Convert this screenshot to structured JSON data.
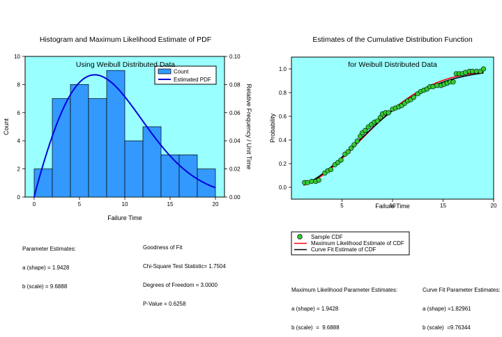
{
  "left_panel": {
    "title_line1": "Histogram and Maximum Likelihood Estimate of PDF",
    "title_line2": "Using Weibull Distributed Data",
    "parameters": {
      "heading": "Parameter Estimates:",
      "shape": "a (shape) = 1.9428",
      "scale": "b (scale) = 9.6888"
    },
    "goodness_of_fit": {
      "heading": "Goodness of Fit",
      "chi_square": "Chi-Square Test Statistic= 1.7504",
      "dof": "Degrees of Freedom = 3.0000",
      "p_value": "P-Value = 0.6258"
    }
  },
  "right_panel": {
    "title_line1": "Estimates of the Cumulative Distribution Function",
    "title_line2": "for Weibull Distributed Data",
    "mle_params": {
      "heading": "Maximum Likelihood Parameter Estimates:",
      "shape": "a (shape) = 1.9428",
      "scale": "b (scale)  =  9.6888"
    },
    "fit_params": {
      "heading": "Curve Fit Parameter Estimates:",
      "shape": "a (shape) =1.82961",
      "scale": "b (scale)  =9.76344"
    }
  },
  "colors": {
    "plot_bg": "#99FFFF",
    "bar_fill": "#3399FF",
    "pdf_line": "#0000DD",
    "mle_line": "#FF0000",
    "fit_line": "#000000",
    "marker": "#33CC33"
  },
  "chart_data": [
    {
      "type": "bar",
      "title": "Histogram and Maximum Likelihood Estimate of PDF\nUsing Weibull Distributed Data",
      "xlabel": "Failure Time",
      "ylabel": "Count",
      "y2label": "Relative Frequency / Unit Time",
      "xlim": [
        -1,
        21
      ],
      "ylim": [
        0,
        10
      ],
      "y2lim": [
        0,
        0.1
      ],
      "x_ticks": [
        "0",
        "5",
        "10",
        "15",
        "20"
      ],
      "y_ticks": [
        "0",
        "2",
        "4",
        "6",
        "8",
        "10"
      ],
      "y2_ticks": [
        "0.00",
        "0.02",
        "0.04",
        "0.06",
        "0.08",
        "0.10"
      ],
      "bin_edges": [
        0,
        2,
        4,
        6,
        8,
        10,
        12,
        14,
        16,
        18,
        20
      ],
      "counts": [
        2,
        7,
        8,
        7,
        9,
        4,
        5,
        3,
        3,
        2
      ],
      "legend": [
        "Count",
        "Estimated PDF"
      ],
      "legend_position": "top-right",
      "pdf_curve": {
        "name": "Estimated PDF",
        "shape": 1.9428,
        "scale": 9.6888,
        "x_range": [
          0,
          20
        ]
      }
    },
    {
      "type": "scatter",
      "title": "Estimates of the Cumulative Distribution Function\nfor Weibull Distributed Data",
      "xlabel": "Failure Time",
      "ylabel": "Probability",
      "xlim": [
        0,
        20
      ],
      "ylim": [
        -0.1,
        1.1
      ],
      "x_ticks": [
        "5",
        "10",
        "15",
        "20"
      ],
      "y_ticks": [
        "0.0",
        "0.2",
        "0.4",
        "0.6",
        "0.8",
        "1.0"
      ],
      "legend": [
        "Sample CDF",
        "Maximum Likelihood Estimate of CDF",
        "Curve Fit Estimate of CDF"
      ],
      "legend_position": "below",
      "sample_cdf": [
        [
          1.3,
          0.04
        ],
        [
          1.6,
          0.04
        ],
        [
          2.0,
          0.05
        ],
        [
          2.4,
          0.05
        ],
        [
          2.7,
          0.06
        ],
        [
          3.3,
          0.12
        ],
        [
          3.6,
          0.14
        ],
        [
          3.9,
          0.15
        ],
        [
          4.3,
          0.19
        ],
        [
          4.6,
          0.21
        ],
        [
          4.9,
          0.23
        ],
        [
          5.3,
          0.28
        ],
        [
          5.6,
          0.3
        ],
        [
          5.9,
          0.33
        ],
        [
          6.2,
          0.36
        ],
        [
          6.5,
          0.39
        ],
        [
          6.8,
          0.43
        ],
        [
          7.0,
          0.46
        ],
        [
          7.3,
          0.48
        ],
        [
          7.6,
          0.51
        ],
        [
          7.9,
          0.53
        ],
        [
          8.2,
          0.55
        ],
        [
          8.5,
          0.56
        ],
        [
          8.8,
          0.59
        ],
        [
          9.0,
          0.62
        ],
        [
          9.3,
          0.63
        ],
        [
          9.6,
          0.63
        ],
        [
          10.0,
          0.66
        ],
        [
          10.3,
          0.67
        ],
        [
          10.6,
          0.68
        ],
        [
          10.9,
          0.69
        ],
        [
          11.2,
          0.71
        ],
        [
          11.5,
          0.73
        ],
        [
          11.8,
          0.74
        ],
        [
          12.1,
          0.76
        ],
        [
          12.5,
          0.79
        ],
        [
          12.8,
          0.81
        ],
        [
          13.1,
          0.82
        ],
        [
          13.4,
          0.83
        ],
        [
          13.7,
          0.85
        ],
        [
          14.0,
          0.85
        ],
        [
          14.4,
          0.86
        ],
        [
          14.8,
          0.86
        ],
        [
          15.1,
          0.87
        ],
        [
          15.4,
          0.88
        ],
        [
          15.7,
          0.89
        ],
        [
          16.0,
          0.89
        ],
        [
          16.3,
          0.96
        ],
        [
          16.6,
          0.96
        ],
        [
          16.9,
          0.96
        ],
        [
          17.2,
          0.97
        ],
        [
          17.6,
          0.98
        ],
        [
          17.9,
          0.98
        ],
        [
          18.3,
          0.98
        ],
        [
          18.7,
          0.98
        ],
        [
          19.0,
          1.0
        ]
      ],
      "mle_cdf": {
        "name": "Maximum Likelihood Estimate of CDF",
        "shape": 1.9428,
        "scale": 9.6888,
        "x_range": [
          1.2,
          19.0
        ]
      },
      "fit_cdf": {
        "name": "Curve Fit Estimate of CDF",
        "shape": 1.82961,
        "scale": 9.76344,
        "x_range": [
          1.2,
          19.0
        ]
      }
    }
  ]
}
